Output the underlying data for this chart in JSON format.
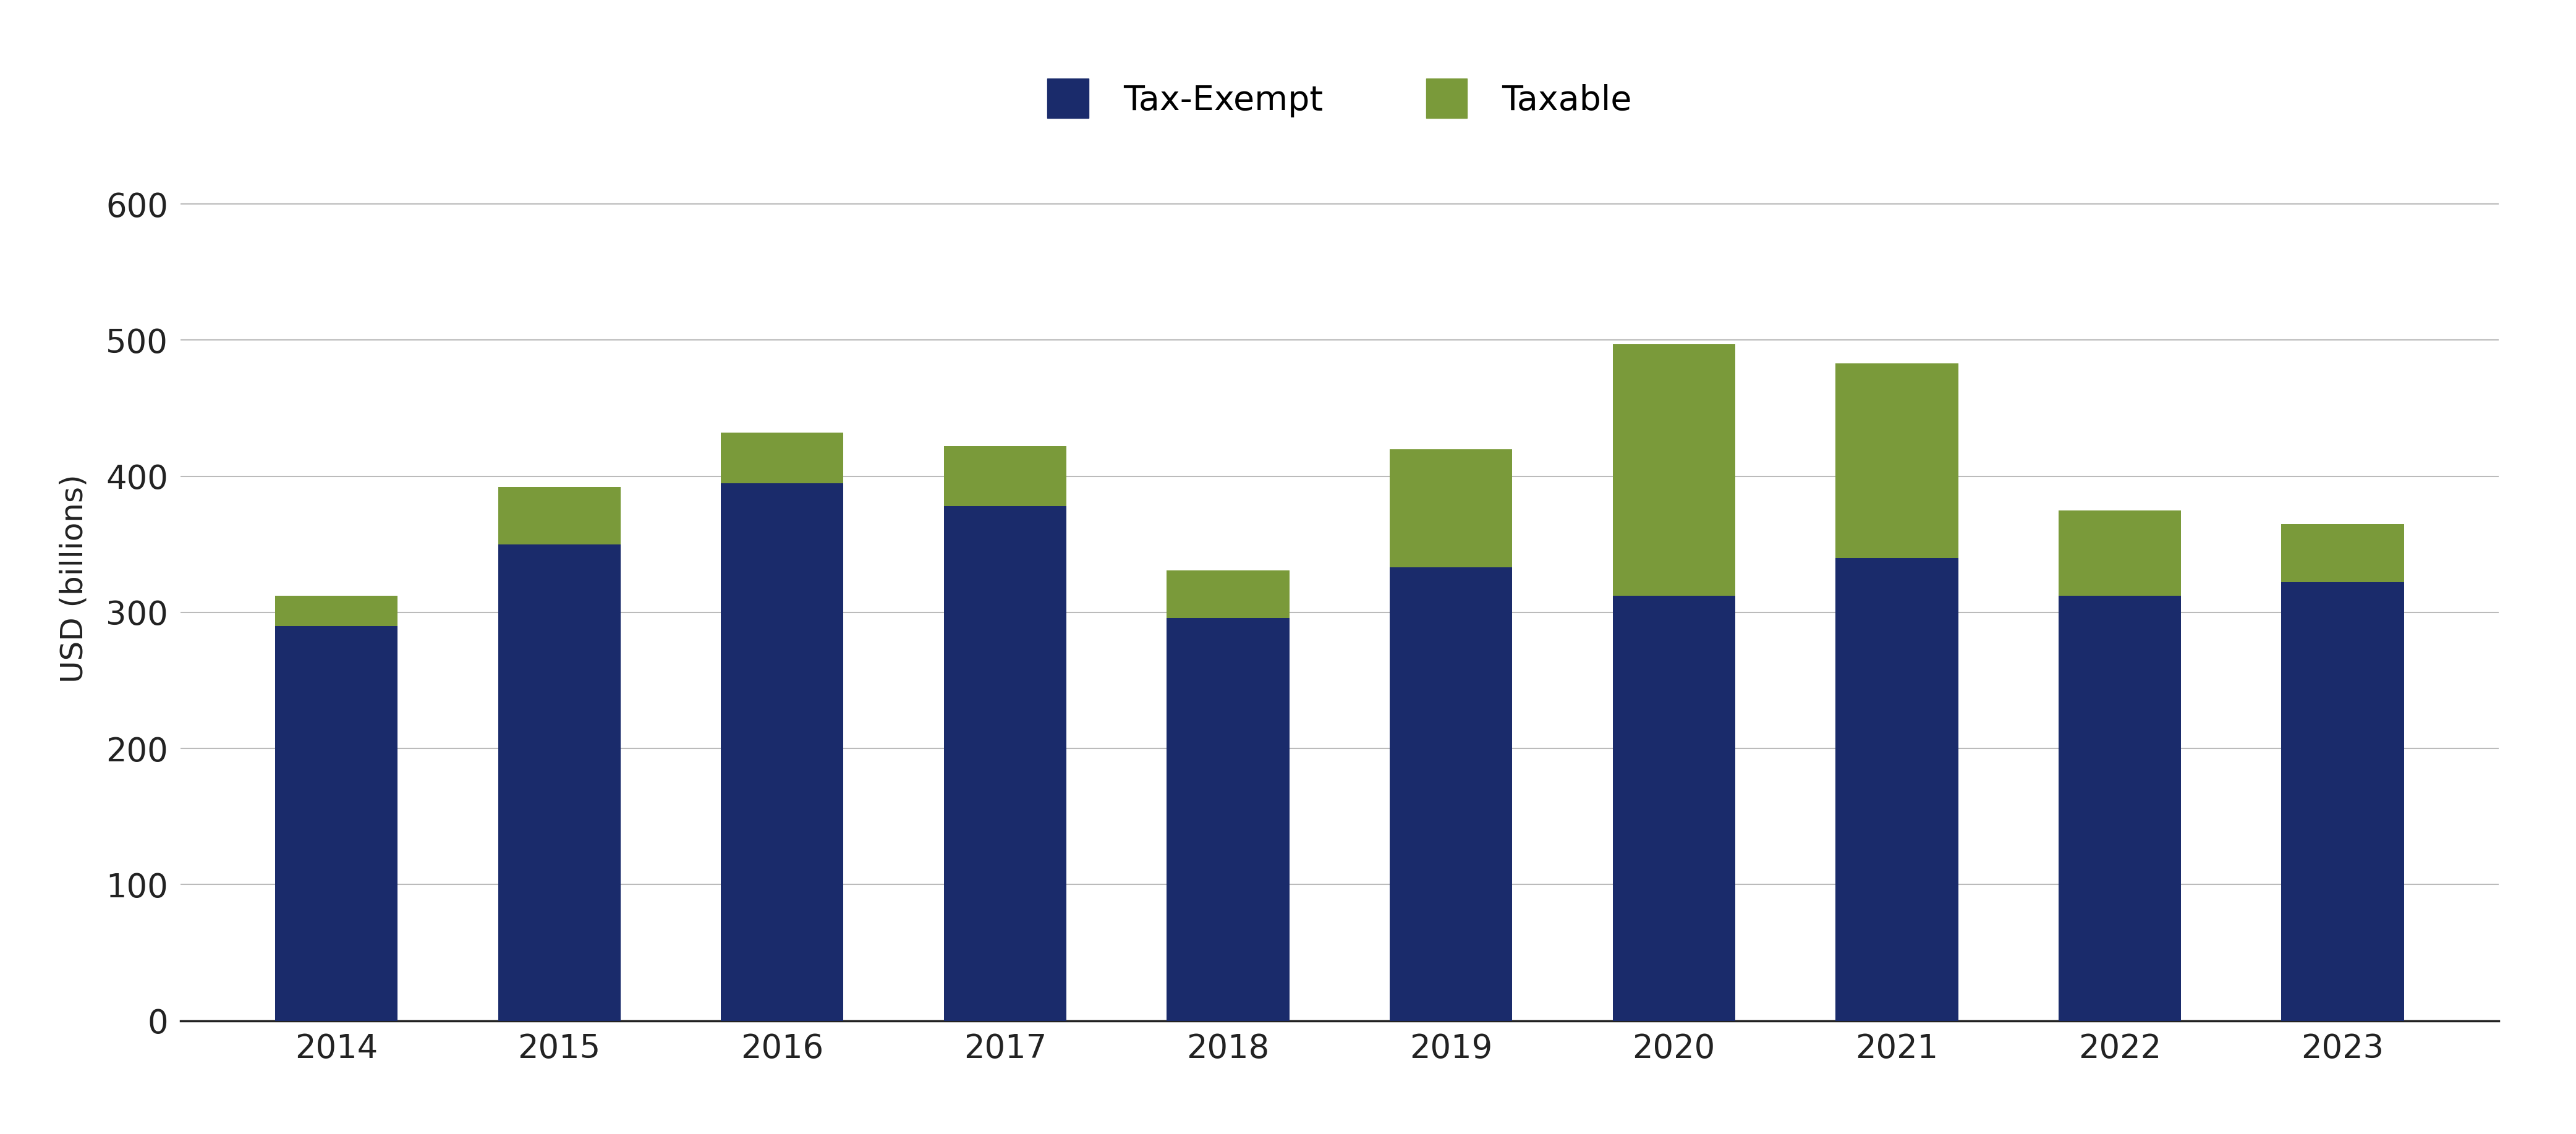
{
  "years": [
    "2014",
    "2015",
    "2016",
    "2017",
    "2018",
    "2019",
    "2020",
    "2021",
    "2022",
    "2023"
  ],
  "tax_exempt": [
    290,
    350,
    395,
    378,
    296,
    333,
    312,
    340,
    312,
    322
  ],
  "taxable": [
    22,
    42,
    37,
    44,
    35,
    87,
    185,
    143,
    63,
    43
  ],
  "tax_exempt_color": "#1a2b6b",
  "taxable_color": "#7a9a3a",
  "ylabel": "USD (billions)",
  "ylim": [
    0,
    650
  ],
  "yticks": [
    0,
    100,
    200,
    300,
    400,
    500,
    600
  ],
  "legend_tax_exempt": "Tax-Exempt",
  "legend_taxable": "Taxable",
  "background_color": "#ffffff",
  "grid_color": "#bbbbbb",
  "bar_width": 0.55,
  "axis_fontsize": 36,
  "tick_fontsize": 38,
  "legend_fontsize": 40
}
